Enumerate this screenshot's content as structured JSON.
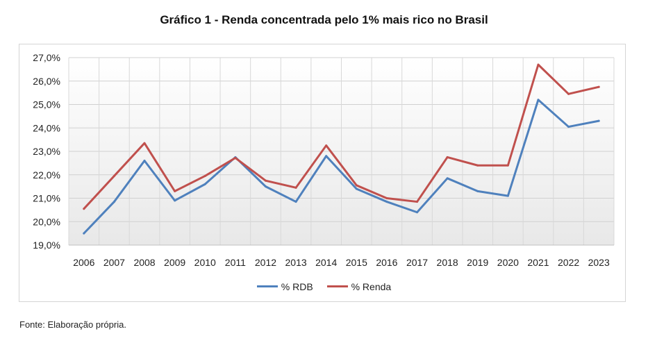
{
  "chart_data": {
    "type": "line",
    "title": "Gráfico 1 - Renda concentrada pelo 1% mais rico no Brasil",
    "categories": [
      "2006",
      "2007",
      "2008",
      "2009",
      "2010",
      "2011",
      "2012",
      "2013",
      "2014",
      "2015",
      "2016",
      "2017",
      "2018",
      "2019",
      "2020",
      "2021",
      "2022",
      "2023"
    ],
    "series": [
      {
        "name": "% RDB",
        "color": "#4f81bd",
        "values": [
          19.5,
          20.85,
          22.6,
          20.9,
          21.6,
          22.75,
          21.5,
          20.85,
          22.8,
          21.4,
          20.85,
          20.4,
          21.85,
          21.3,
          21.1,
          25.2,
          24.05,
          24.3
        ]
      },
      {
        "name": "% Renda",
        "color": "#c0504d",
        "values": [
          20.55,
          21.95,
          23.35,
          21.3,
          21.95,
          22.72,
          21.75,
          21.45,
          23.25,
          21.55,
          21.0,
          20.85,
          22.75,
          22.4,
          22.4,
          26.7,
          25.45,
          25.75
        ]
      }
    ],
    "ylim": [
      19,
      27
    ],
    "yticks": [
      "19,0%",
      "20,0%",
      "21,0%",
      "22,0%",
      "23,0%",
      "24,0%",
      "25,0%",
      "26,0%",
      "27,0%"
    ],
    "xlabel": "",
    "ylabel": "",
    "legend": "bottom",
    "grid": true
  },
  "source": "Fonte: Elaboração própria."
}
